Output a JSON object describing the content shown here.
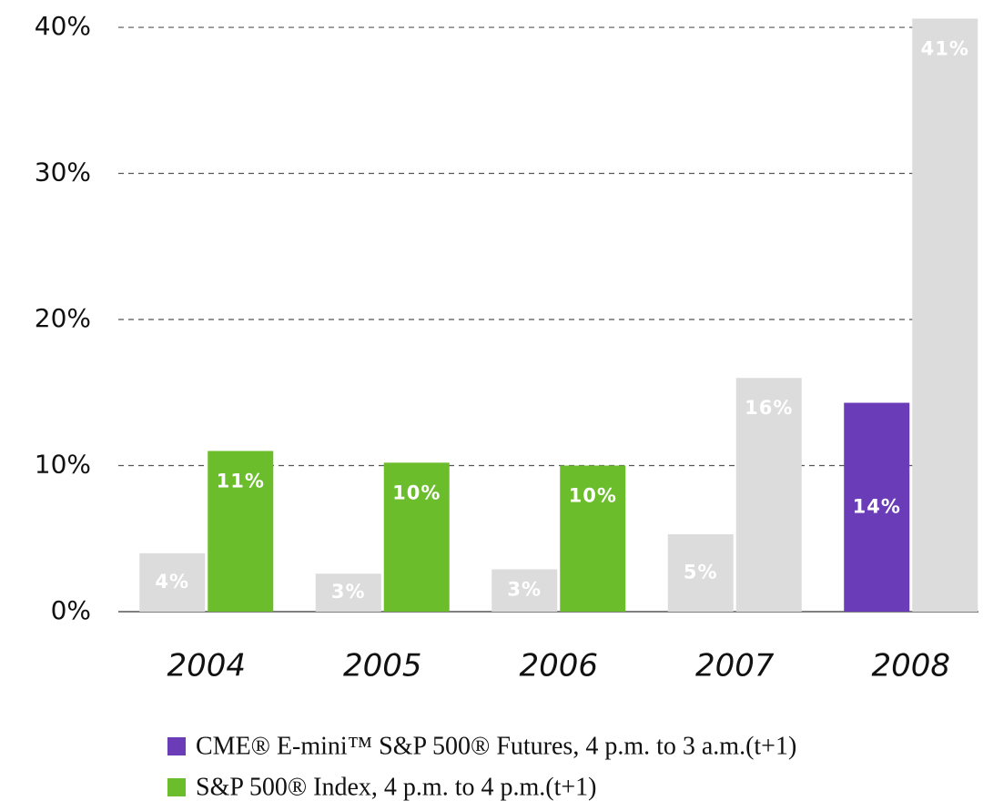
{
  "chart_data": {
    "type": "bar",
    "categories": [
      "2004",
      "2005",
      "2006",
      "2007",
      "2008"
    ],
    "series": [
      {
        "name": "CME® E-mini™ S&P 500® Futures, 4 p.m. to 3 a.m.(t+1)",
        "color": "#6a3cb8",
        "colors": [
          "#dcdcdc",
          "#dcdcdc",
          "#dcdcdc",
          "#dcdcdc",
          "#6a3cb8"
        ],
        "values": [
          4,
          2.6,
          2.9,
          5.3,
          14.3
        ],
        "value_labels": [
          "4%",
          "3%",
          "3%",
          "5%",
          "14%"
        ]
      },
      {
        "name": "S&P 500® Index, 4 p.m. to 4 p.m.(t+1)",
        "color": "#6bbd2b",
        "colors": [
          "#6bbd2b",
          "#6bbd2b",
          "#6bbd2b",
          "#dcdcdc",
          "#dcdcdc"
        ],
        "values": [
          11,
          10.2,
          10,
          16,
          40.6
        ],
        "value_labels": [
          "11%",
          "10%",
          "10%",
          "16%",
          "41%"
        ]
      }
    ],
    "ylim": [
      0,
      41
    ],
    "yticks": [
      {
        "value": 0,
        "label": "0%"
      },
      {
        "value": 10,
        "label": "10%"
      },
      {
        "value": 20,
        "label": "20%"
      },
      {
        "value": 30,
        "label": "30%"
      },
      {
        "value": 40,
        "label": "40%"
      }
    ],
    "grid": true
  }
}
